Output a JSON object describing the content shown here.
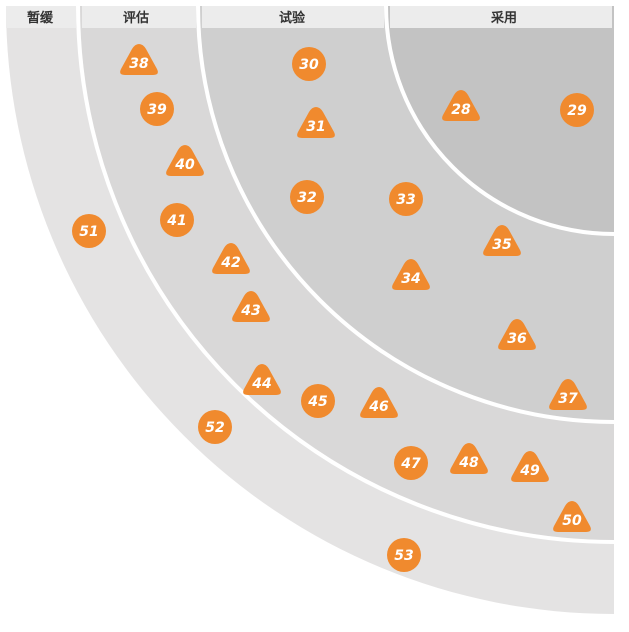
{
  "colors": {
    "blip": "#f08a2e",
    "hold": "#e4e3e3",
    "assess": "#d9d8d8",
    "trial": "#cfcfcf",
    "adopt": "#c3c3c3",
    "label_bar": "#ececec",
    "divider": "#ffffff"
  },
  "rings": [
    {
      "key": "hold",
      "label": "暂缓"
    },
    {
      "key": "assess",
      "label": "评估"
    },
    {
      "key": "trial",
      "label": "试验"
    },
    {
      "key": "adopt",
      "label": "采用"
    }
  ],
  "blips": [
    {
      "id": "28",
      "label": "28",
      "shape": "triangle"
    },
    {
      "id": "29",
      "label": "29",
      "shape": "circle"
    },
    {
      "id": "30",
      "label": "30",
      "shape": "circle"
    },
    {
      "id": "31",
      "label": "31",
      "shape": "triangle"
    },
    {
      "id": "32",
      "label": "32",
      "shape": "circle"
    },
    {
      "id": "33",
      "label": "33",
      "shape": "circle"
    },
    {
      "id": "34",
      "label": "34",
      "shape": "triangle"
    },
    {
      "id": "35",
      "label": "35",
      "shape": "triangle"
    },
    {
      "id": "36",
      "label": "36",
      "shape": "triangle"
    },
    {
      "id": "37",
      "label": "37",
      "shape": "triangle"
    },
    {
      "id": "38",
      "label": "38",
      "shape": "triangle"
    },
    {
      "id": "39",
      "label": "39",
      "shape": "circle"
    },
    {
      "id": "40",
      "label": "40",
      "shape": "triangle"
    },
    {
      "id": "41",
      "label": "41",
      "shape": "circle"
    },
    {
      "id": "42",
      "label": "42",
      "shape": "triangle"
    },
    {
      "id": "43",
      "label": "43",
      "shape": "triangle"
    },
    {
      "id": "44",
      "label": "44",
      "shape": "triangle"
    },
    {
      "id": "45",
      "label": "45",
      "shape": "circle"
    },
    {
      "id": "46",
      "label": "46",
      "shape": "triangle"
    },
    {
      "id": "47",
      "label": "47",
      "shape": "circle"
    },
    {
      "id": "48",
      "label": "48",
      "shape": "triangle"
    },
    {
      "id": "49",
      "label": "49",
      "shape": "triangle"
    },
    {
      "id": "50",
      "label": "50",
      "shape": "triangle"
    },
    {
      "id": "51",
      "label": "51",
      "shape": "circle"
    },
    {
      "id": "52",
      "label": "52",
      "shape": "circle"
    },
    {
      "id": "53",
      "label": "53",
      "shape": "circle"
    }
  ]
}
